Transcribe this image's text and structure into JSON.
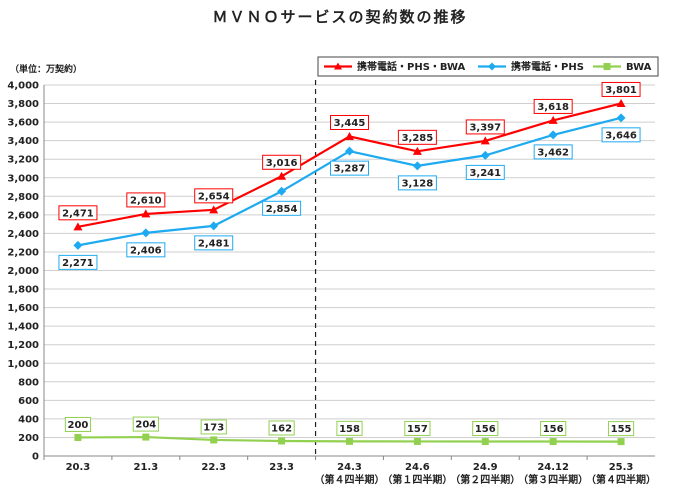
{
  "chart_data": {
    "type": "line",
    "title": "ＭＶＮＯサービスの契約数の推移",
    "unit_label": "（単位：万契約）",
    "x": [
      "20.3",
      "21.3",
      "22.3",
      "23.3",
      "24.3",
      "24.6",
      "24.9",
      "24.12",
      "25.3"
    ],
    "x_sub": [
      "",
      "",
      "",
      "",
      "（第４四半期）",
      "（第１四半期）",
      "（第２四半期）",
      "（第３四半期）",
      "（第４四半期）"
    ],
    "ylim": [
      0,
      4000
    ],
    "ytick_step": 200,
    "grid": true,
    "legend_position": "top-right",
    "series": [
      {
        "name": "携帯電話・PHS・BWA",
        "color": "#ff0000",
        "values": [
          2471,
          2610,
          2654,
          3016,
          3445,
          3285,
          3397,
          3618,
          3801
        ]
      },
      {
        "name": "携帯電話・PHS",
        "color": "#1eaaf1",
        "values": [
          2271,
          2406,
          2481,
          2854,
          3287,
          3128,
          3241,
          3462,
          3646
        ]
      },
      {
        "name": "BWA",
        "color": "#92d050",
        "values": [
          200,
          204,
          173,
          162,
          158,
          157,
          156,
          156,
          155
        ]
      }
    ]
  }
}
